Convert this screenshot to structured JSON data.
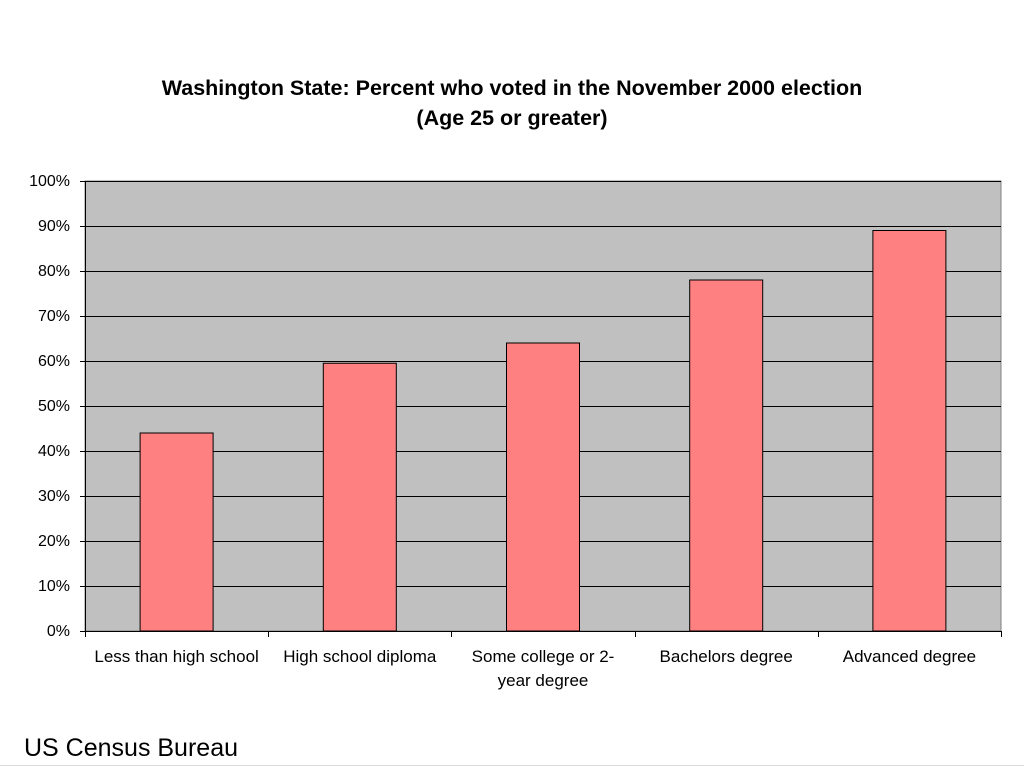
{
  "chart_data": {
    "type": "bar",
    "title": "Washington State: Percent who voted in the November 2000 election",
    "subtitle": "(Age 25 or greater)",
    "categories": [
      "Less than high school",
      "High school diploma",
      "Some college or 2-year degree",
      "Bachelors degree",
      "Advanced degree"
    ],
    "values": [
      44,
      59.5,
      64,
      78,
      89
    ],
    "ylim": [
      0,
      100
    ],
    "yticks": [
      0,
      10,
      20,
      30,
      40,
      50,
      60,
      70,
      80,
      90,
      100
    ],
    "ytick_labels": [
      "0%",
      "10%",
      "20%",
      "30%",
      "40%",
      "50%",
      "60%",
      "70%",
      "80%",
      "90%",
      "100%"
    ],
    "grid": true,
    "colors": {
      "bar": "#FF8080",
      "plot_background": "#C0C0C0",
      "gridline": "#000000"
    }
  },
  "footer": {
    "source": "US Census Bureau"
  }
}
